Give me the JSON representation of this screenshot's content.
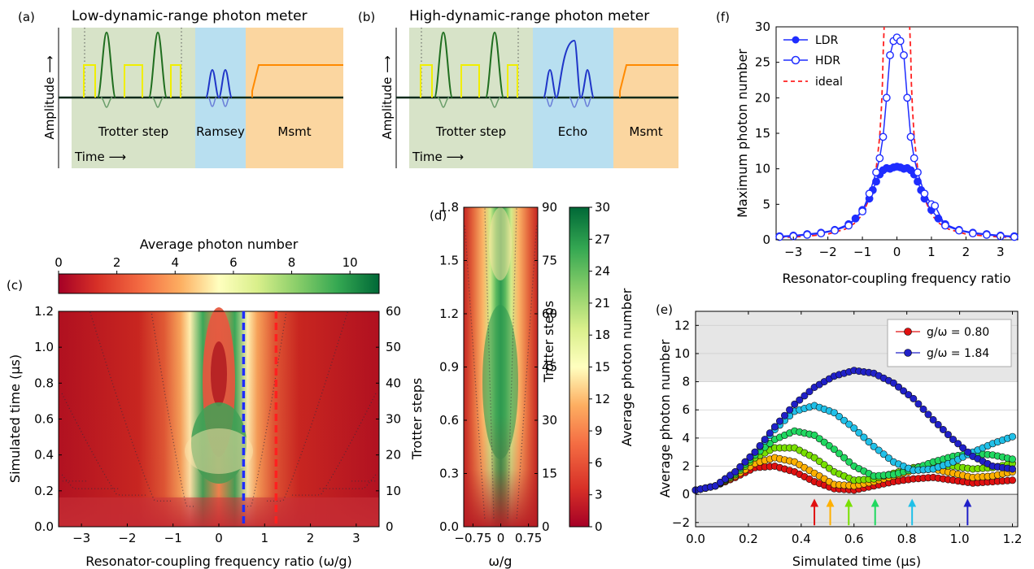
{
  "chart_data": [
    {
      "type": "diagram",
      "panel": "(a)",
      "title": "Low-dynamic-range photon meter",
      "ylabel": "Amplitude ⟶",
      "xlabel": "Time ⟶",
      "sections": [
        "Trotter step",
        "Ramsey",
        "Msmt"
      ],
      "colors": {
        "trotter": "#d7e3c8",
        "ramsey": "#b8dff0",
        "msmt": "#fbd6a0",
        "pulse_square": "#f0ee00",
        "pulse_gauss": "#1f6e1f",
        "pulse_blue": "#1f35c8",
        "msmt_line": "#ff8a00"
      }
    },
    {
      "type": "diagram",
      "panel": "(b)",
      "title": "High-dynamic-range photon meter",
      "ylabel": "Amplitude ⟶",
      "xlabel": "Time ⟶",
      "sections": [
        "Trotter step",
        "Echo",
        "Msmt"
      ]
    },
    {
      "type": "heatmap",
      "panel": "(c)",
      "colorbar_label": "Average photon number",
      "colorbar_ticks": [
        0,
        2,
        4,
        6,
        8,
        10
      ],
      "colorbar_range": [
        0,
        11
      ],
      "xlabel": "Resonator-coupling frequency ratio (ω/g)",
      "ylabel": "Simulated time (μs)",
      "ylabel_right": "Trotter steps",
      "xlim": [
        -3.5,
        3.5
      ],
      "ylim": [
        0,
        1.2
      ],
      "xticks": [
        -3,
        -2,
        -1,
        0,
        1,
        2,
        3
      ],
      "yticks": [
        0.0,
        0.2,
        0.4,
        0.6,
        0.8,
        1.0,
        1.2
      ],
      "yticks_right": [
        0,
        10,
        20,
        30,
        40,
        50,
        60
      ],
      "cuts": [
        {
          "x": 0.54,
          "color": "#1f2dff"
        },
        {
          "x": 1.25,
          "color": "#ff2020"
        }
      ]
    },
    {
      "type": "heatmap",
      "panel": "(d)",
      "colorbar_label": "Average photon number",
      "colorbar_ticks": [
        0,
        3,
        6,
        9,
        12,
        15,
        18,
        21,
        24,
        27,
        30
      ],
      "colorbar_range": [
        0,
        30
      ],
      "xlabel": "ω/g",
      "ylabel_right": "Trotter steps",
      "xlim": [
        -1.0,
        1.0
      ],
      "ylim": [
        0,
        1.8
      ],
      "xticks": [
        "-0.75",
        "0",
        "0.75"
      ],
      "xticks_values": [
        -0.75,
        0,
        0.75
      ],
      "yticks": [
        0.0,
        0.3,
        0.6,
        0.9,
        1.2,
        1.5,
        1.8
      ],
      "yticks_right": [
        0,
        15,
        30,
        45,
        60,
        75,
        90
      ]
    },
    {
      "type": "line",
      "panel": "(f)",
      "xlabel": "Resonator-coupling frequency ratio",
      "ylabel": "Maximum photon number",
      "xlim": [
        -3.5,
        3.5
      ],
      "ylim": [
        0,
        30
      ],
      "xticks": [
        -3,
        -2,
        -1,
        0,
        1,
        2,
        3
      ],
      "yticks": [
        0,
        5,
        10,
        15,
        20,
        25,
        30
      ],
      "legend_position": "top-left",
      "series": [
        {
          "name": "LDR",
          "marker": "filled",
          "color": "#1f2dff",
          "x": [
            -3.4,
            -3.0,
            -2.6,
            -2.2,
            -1.8,
            -1.4,
            -1.2,
            -1.0,
            -0.8,
            -0.7,
            -0.6,
            -0.5,
            -0.4,
            -0.3,
            -0.2,
            -0.1,
            0.0,
            0.1,
            0.2,
            0.3,
            0.4,
            0.5,
            0.6,
            0.7,
            0.8,
            1.0,
            1.2,
            1.4,
            1.8,
            2.2,
            2.6,
            3.0,
            3.4
          ],
          "y": [
            0.5,
            0.6,
            0.8,
            1.0,
            1.4,
            2.2,
            3.0,
            4.2,
            5.8,
            7.0,
            8.2,
            9.2,
            9.8,
            10.1,
            10.0,
            10.2,
            10.3,
            10.2,
            10.0,
            10.1,
            9.8,
            9.2,
            8.2,
            7.0,
            5.8,
            4.2,
            3.0,
            2.2,
            1.4,
            1.0,
            0.8,
            0.6,
            0.5
          ]
        },
        {
          "name": "HDR",
          "marker": "open",
          "color": "#1f2dff",
          "x": [
            -3.4,
            -3.0,
            -2.6,
            -2.2,
            -1.8,
            -1.4,
            -1.0,
            -0.8,
            -0.6,
            -0.5,
            -0.4,
            -0.3,
            -0.2,
            -0.1,
            0.0,
            0.1,
            0.2,
            0.3,
            0.4,
            0.5,
            0.6,
            0.8,
            1.0,
            1.1,
            1.4,
            1.8,
            2.2,
            2.6,
            3.0,
            3.4
          ],
          "y": [
            0.4,
            0.5,
            0.7,
            0.9,
            1.3,
            2.0,
            4.0,
            6.5,
            9.5,
            11.5,
            14.5,
            20.0,
            26.0,
            28.0,
            28.5,
            28.0,
            26.0,
            20.0,
            14.5,
            11.5,
            9.5,
            6.5,
            5.0,
            4.8,
            2.0,
            1.3,
            0.9,
            0.7,
            0.5,
            0.4
          ]
        },
        {
          "name": "ideal",
          "style": "dashed",
          "color": "#ff2020",
          "x": [
            -3.4,
            -3.0,
            -2.5,
            -2.0,
            -1.5,
            -1.2,
            -1.0,
            -0.8,
            -0.6,
            -0.5,
            -0.45,
            -0.42,
            -0.4,
            -0.37
          ],
          "y": [
            0.3,
            0.4,
            0.55,
            0.8,
            1.5,
            2.4,
            3.6,
            5.8,
            10.0,
            14.5,
            18.5,
            22.0,
            26.0,
            30.0
          ]
        }
      ]
    },
    {
      "type": "scatter",
      "panel": "(e)",
      "xlabel": "Simulated time (μs)",
      "ylabel": "Average photon number",
      "xlim": [
        0,
        1.22
      ],
      "ylim": [
        -2.3,
        13
      ],
      "xticks": [
        "0.0",
        "0.2",
        "0.4",
        "0.6",
        "0.8",
        "1.0",
        "1.2"
      ],
      "xticks_values": [
        0,
        0.2,
        0.4,
        0.6,
        0.8,
        1.0,
        1.2
      ],
      "yticks": [
        -2,
        0,
        2,
        4,
        6,
        8,
        10,
        12
      ],
      "shaded_regions": [
        [
          -2.3,
          0
        ],
        [
          8,
          13
        ]
      ],
      "legend_position": "top-right",
      "legend": [
        {
          "name": "g/ω = 0.80",
          "color": "#e01010"
        },
        {
          "name": "g/ω = 1.84",
          "color": "#2020c8"
        }
      ],
      "series": [
        {
          "color": "#e01010",
          "peak": 2.0,
          "arrow_x": 0.45,
          "y": [
            0.3,
            0.6,
            1.2,
            1.9,
            2.0,
            1.6,
            0.9,
            0.4,
            0.3,
            0.6,
            0.9,
            1.1,
            1.2,
            1.0,
            0.8,
            0.9,
            1.0
          ]
        },
        {
          "color": "#ffb000",
          "peak": 2.6,
          "arrow_x": 0.51,
          "y": [
            0.3,
            0.6,
            1.3,
            2.2,
            2.6,
            2.3,
            1.5,
            0.7,
            0.6,
            0.9,
            1.3,
            1.7,
            1.8,
            1.5,
            1.2,
            1.3,
            1.6
          ]
        },
        {
          "color": "#78e000",
          "peak": 3.4,
          "arrow_x": 0.58,
          "y": [
            0.3,
            0.6,
            1.4,
            2.6,
            3.3,
            3.3,
            2.6,
            1.6,
            1.0,
            1.1,
            1.5,
            1.9,
            2.1,
            2.0,
            1.8,
            1.9,
            2.2
          ]
        },
        {
          "color": "#20d860",
          "peak": 4.5,
          "arrow_x": 0.68,
          "y": [
            0.3,
            0.6,
            1.5,
            2.8,
            3.9,
            4.5,
            4.2,
            3.2,
            2.0,
            1.3,
            1.4,
            1.8,
            2.3,
            2.7,
            2.9,
            2.8,
            2.5
          ]
        },
        {
          "color": "#20c0e8",
          "peak": 6.3,
          "arrow_x": 0.82,
          "y": [
            0.3,
            0.6,
            1.6,
            3.0,
            4.6,
            5.9,
            6.3,
            5.8,
            4.7,
            3.4,
            2.3,
            1.7,
            1.8,
            2.3,
            3.0,
            3.6,
            4.1
          ]
        },
        {
          "color": "#2020c8",
          "peak": 8.8,
          "arrow_x": 1.03,
          "y": [
            0.3,
            0.6,
            1.6,
            3.0,
            4.8,
            6.4,
            7.6,
            8.4,
            8.8,
            8.6,
            7.9,
            6.8,
            5.3,
            3.9,
            2.7,
            2.0,
            1.8
          ]
        }
      ]
    }
  ]
}
